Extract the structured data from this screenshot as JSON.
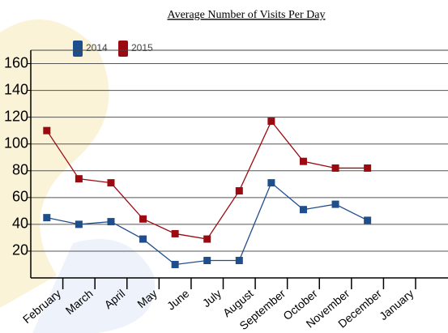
{
  "chart_data": {
    "type": "line",
    "title": "Average Number of Visits Per Day",
    "categories": [
      "February",
      "March",
      "April",
      "May",
      "June",
      "July",
      "August",
      "September",
      "October",
      "November",
      "December",
      "January"
    ],
    "series": [
      {
        "name": "2014",
        "color": "#1f4e8c",
        "values": [
          45,
          40,
          42,
          29,
          10,
          13,
          13,
          71,
          51,
          55,
          43,
          null
        ]
      },
      {
        "name": "2015",
        "color": "#9b0a10",
        "values": [
          110,
          74,
          71,
          44,
          33,
          29,
          65,
          117,
          87,
          82,
          82,
          null
        ]
      }
    ],
    "ylim": [
      0,
      170
    ],
    "yticks": [
      20,
      40,
      60,
      80,
      100,
      120,
      140,
      160
    ],
    "grid": true,
    "legend": "top-left"
  }
}
